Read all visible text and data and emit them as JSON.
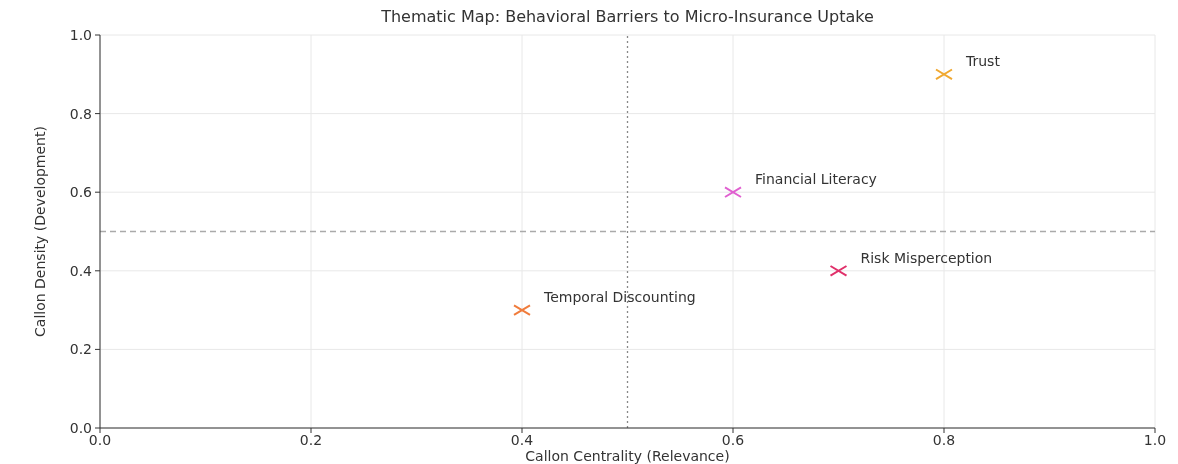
{
  "chart_data": {
    "type": "scatter",
    "title": "Thematic Map: Behavioral Barriers to Micro-Insurance Uptake",
    "xlabel": "Callon Centrality (Relevance)",
    "ylabel": "Callon Density (Development)",
    "series": [
      {
        "name": "Temporal Discounting",
        "color": "#f07c3c",
        "x": [
          0.4
        ],
        "values": [
          0.3
        ]
      },
      {
        "name": "Financial Literacy",
        "color": "#e060d0",
        "x": [
          0.6
        ],
        "values": [
          0.6
        ]
      },
      {
        "name": "Risk Misperception",
        "color": "#e0306a",
        "x": [
          0.7
        ],
        "values": [
          0.4
        ]
      },
      {
        "name": "Trust",
        "color": "#f0a830",
        "x": [
          0.8
        ],
        "values": [
          0.9
        ]
      }
    ],
    "xlim": [
      0,
      1
    ],
    "ylim": [
      0,
      1
    ],
    "xticks": [
      {
        "value": 0,
        "label": "0.0"
      },
      0.2,
      0.4,
      0.6,
      0.8,
      {
        "value": 1,
        "label": "1.0"
      }
    ],
    "yticks": [
      {
        "value": 0,
        "label": "0.0"
      },
      0.2,
      0.4,
      0.6,
      0.8,
      {
        "value": 1,
        "label": "1.0"
      }
    ],
    "grid": true,
    "legend": false,
    "marker": "cross",
    "ref_lines": [
      {
        "axis": "x",
        "value": 0.5,
        "color": "#888888",
        "line_style": "dotted"
      },
      {
        "axis": "y",
        "value": 0.5,
        "color": "#aaaaaa",
        "line_style": "dashed"
      }
    ]
  }
}
